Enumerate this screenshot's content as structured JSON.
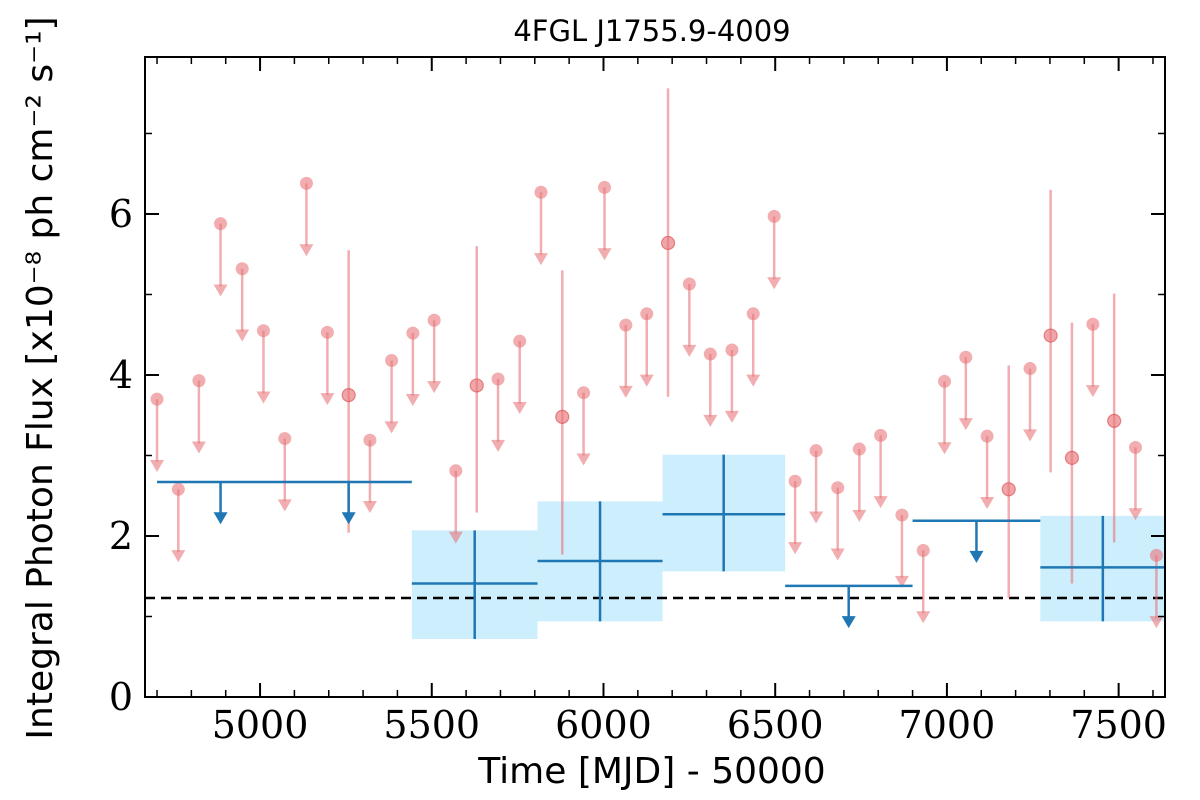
{
  "chart_data": {
    "type": "scatter",
    "title": "4FGL J1755.9-4009",
    "xlabel": "Time [MJD] - 50000",
    "ylabel": "Integral Photon Flux [x10⁻⁸ ph cm⁻² s⁻¹]",
    "xlim": [
      4665,
      7635
    ],
    "ylim": [
      0,
      7.95
    ],
    "x_ticks": [
      5000,
      5500,
      6000,
      6500,
      7000,
      7500
    ],
    "y_ticks": [
      0,
      2,
      4,
      6
    ],
    "grid": false,
    "reference_line": {
      "y": 1.23,
      "style": "dashed",
      "color": "#000000"
    },
    "colors": {
      "short_bins": "#e8777a",
      "long_bins": "#1f77b4",
      "band": "#cdeefc"
    },
    "short_bins": {
      "upper_limits": [
        {
          "x": 4700,
          "y": 3.7
        },
        {
          "x": 4762,
          "y": 2.58
        },
        {
          "x": 4822,
          "y": 3.93
        },
        {
          "x": 4885,
          "y": 5.88
        },
        {
          "x": 4948,
          "y": 5.32
        },
        {
          "x": 5010,
          "y": 4.55
        },
        {
          "x": 5072,
          "y": 3.21
        },
        {
          "x": 5135,
          "y": 6.38
        },
        {
          "x": 5196,
          "y": 4.53
        },
        {
          "x": 5320,
          "y": 3.19
        },
        {
          "x": 5383,
          "y": 4.18
        },
        {
          "x": 5445,
          "y": 4.52
        },
        {
          "x": 5507,
          "y": 4.68
        },
        {
          "x": 5570,
          "y": 2.81
        },
        {
          "x": 5693,
          "y": 3.95
        },
        {
          "x": 5756,
          "y": 4.42
        },
        {
          "x": 5818,
          "y": 6.27
        },
        {
          "x": 5942,
          "y": 3.78
        },
        {
          "x": 6003,
          "y": 6.33
        },
        {
          "x": 6065,
          "y": 4.62
        },
        {
          "x": 6126,
          "y": 4.76
        },
        {
          "x": 6250,
          "y": 5.13
        },
        {
          "x": 6311,
          "y": 4.26
        },
        {
          "x": 6374,
          "y": 4.31
        },
        {
          "x": 6436,
          "y": 4.76
        },
        {
          "x": 6497,
          "y": 5.97
        },
        {
          "x": 6558,
          "y": 2.68
        },
        {
          "x": 6619,
          "y": 3.06
        },
        {
          "x": 6682,
          "y": 2.6
        },
        {
          "x": 6745,
          "y": 3.08
        },
        {
          "x": 6807,
          "y": 3.25
        },
        {
          "x": 6869,
          "y": 2.26
        },
        {
          "x": 6931,
          "y": 1.82
        },
        {
          "x": 6993,
          "y": 3.92
        },
        {
          "x": 7055,
          "y": 4.22
        },
        {
          "x": 7117,
          "y": 3.24
        },
        {
          "x": 7242,
          "y": 4.08
        },
        {
          "x": 7425,
          "y": 4.63
        },
        {
          "x": 7549,
          "y": 3.1
        },
        {
          "x": 7610,
          "y": 1.76
        }
      ],
      "detections": [
        {
          "x": 5258,
          "y": 3.75,
          "ylo": 2.04,
          "yhi": 5.55
        },
        {
          "x": 5631,
          "y": 3.87,
          "ylo": 2.29,
          "yhi": 5.6
        },
        {
          "x": 5880,
          "y": 3.48,
          "ylo": 1.77,
          "yhi": 5.3
        },
        {
          "x": 6188,
          "y": 5.64,
          "ylo": 3.73,
          "yhi": 7.56
        },
        {
          "x": 7180,
          "y": 2.58,
          "ylo": 1.23,
          "yhi": 4.12
        },
        {
          "x": 7302,
          "y": 4.49,
          "ylo": 2.79,
          "yhi": 6.3
        },
        {
          "x": 7364,
          "y": 2.97,
          "ylo": 1.41,
          "yhi": 4.65
        },
        {
          "x": 7487,
          "y": 3.43,
          "ylo": 1.92,
          "yhi": 5.01
        }
      ]
    },
    "long_bins": {
      "upper_limits": [
        {
          "x0": 4700,
          "x1": 5442,
          "y": 2.67,
          "arrow_x": [
            4885,
            5258
          ]
        },
        {
          "x0": 6529,
          "x1": 6900,
          "y": 1.38,
          "arrow_x": [
            6714
          ]
        },
        {
          "x0": 6900,
          "x1": 7272,
          "y": 2.19,
          "arrow_x": [
            7086
          ]
        }
      ],
      "detections": [
        {
          "x0": 5442,
          "x1": 5808,
          "x": 5625,
          "y": 1.41,
          "ylo": 0.72,
          "yhi": 2.07
        },
        {
          "x0": 5808,
          "x1": 6172,
          "x": 5990,
          "y": 1.69,
          "ylo": 0.94,
          "yhi": 2.43
        },
        {
          "x0": 6172,
          "x1": 6529,
          "x": 6350,
          "y": 2.27,
          "ylo": 1.56,
          "yhi": 3.01
        },
        {
          "x0": 7272,
          "x1": 7637,
          "x": 7454,
          "y": 1.61,
          "ylo": 0.94,
          "yhi": 2.25
        }
      ]
    }
  }
}
